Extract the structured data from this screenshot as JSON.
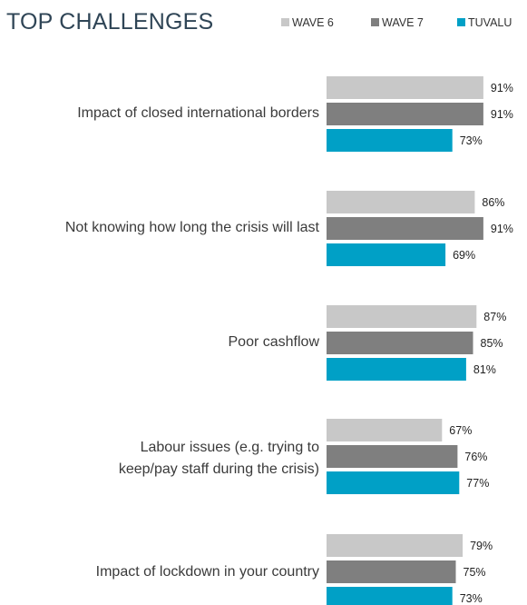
{
  "title": "TOP CHALLENGES",
  "legend": [
    {
      "label": "WAVE 6",
      "color": "#c8c8c8"
    },
    {
      "label": "WAVE 7",
      "color": "#7f7f7f"
    },
    {
      "label": "TUVALU",
      "color": "#00a0c6"
    }
  ],
  "chart_data": {
    "type": "bar",
    "orientation": "horizontal",
    "title": "TOP CHALLENGES",
    "categories": [
      [
        "Impact of closed international borders"
      ],
      [
        "Not knowing how long the crisis will last"
      ],
      [
        "Poor cashflow"
      ],
      [
        "Labour issues  (e.g. trying to",
        "keep/pay staff during the crisis)"
      ],
      [
        "Impact of lockdown in your country"
      ]
    ],
    "series": [
      {
        "name": "WAVE 6",
        "color": "#c8c8c8",
        "values": [
          91,
          86,
          87,
          67,
          79
        ]
      },
      {
        "name": "WAVE 7",
        "color": "#7f7f7f",
        "values": [
          91,
          91,
          85,
          76,
          75
        ]
      },
      {
        "name": "TUVALU",
        "color": "#00a0c6",
        "values": [
          73,
          69,
          81,
          77,
          73
        ]
      }
    ],
    "value_suffix": "%",
    "xlim": [
      0,
      100
    ],
    "grid": false,
    "legend_position": "top-right"
  }
}
